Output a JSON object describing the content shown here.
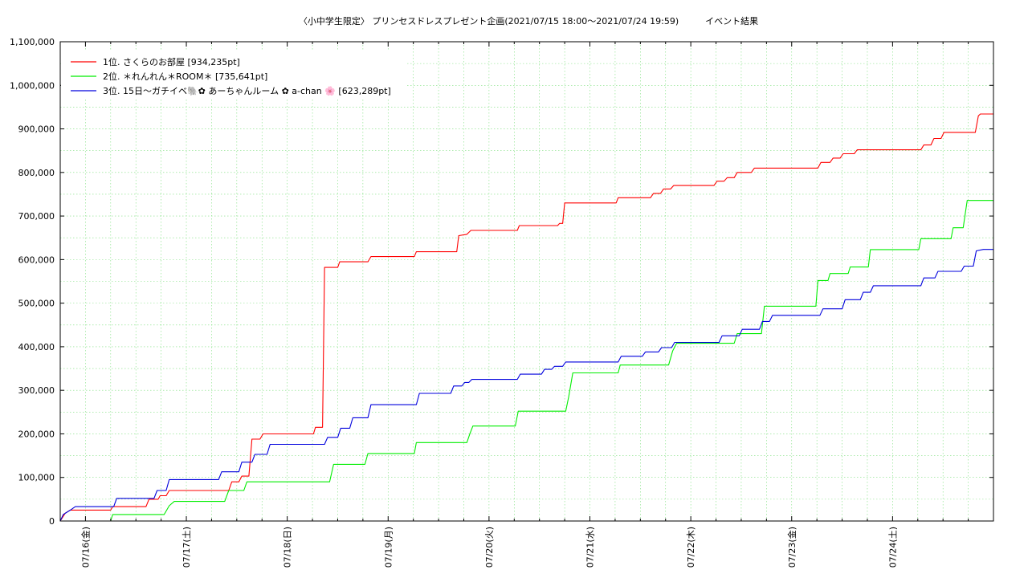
{
  "chart_data": {
    "type": "line",
    "title": "〈小中学生限定〉 プリンセスドレスプレゼント企画(2021/07/15 18:00〜2021/07/24 19:59)　　　イベント結果",
    "xlabel": "",
    "ylabel": "",
    "x_unit": "days since 2021/07/15 18:00",
    "xlim": [
      -0.25,
      9.0
    ],
    "ylim": [
      0,
      1100000
    ],
    "y_ticks": [
      0,
      100000,
      200000,
      300000,
      400000,
      500000,
      600000,
      700000,
      800000,
      900000,
      1000000,
      1100000
    ],
    "y_tick_labels": [
      "0",
      "100,000",
      "200,000",
      "300,000",
      "400,000",
      "500,000",
      "600,000",
      "700,000",
      "800,000",
      "900,000",
      "1,000,000",
      "1,100,000"
    ],
    "x_ticks": [
      0,
      1,
      2,
      3,
      4,
      5,
      6,
      7,
      8
    ],
    "x_tick_labels": [
      "07/16(金)",
      "07/17(土)",
      "07/18(日)",
      "07/19(月)",
      "07/20(火)",
      "07/21(水)",
      "07/22(木)",
      "07/23(金)",
      "07/24(土)"
    ],
    "grid": true,
    "legend_position": "top-left",
    "series": [
      {
        "name": "1位. さくらのお部屋 [934,235pt]",
        "color": "#ff0000",
        "points": [
          [
            -0.25,
            0
          ],
          [
            -0.2,
            18000
          ],
          [
            -0.15,
            25000
          ],
          [
            0.25,
            25000
          ],
          [
            0.27,
            33000
          ],
          [
            0.6,
            33000
          ],
          [
            0.63,
            50000
          ],
          [
            0.72,
            50000
          ],
          [
            0.74,
            58000
          ],
          [
            0.8,
            58000
          ],
          [
            0.83,
            70000
          ],
          [
            1.42,
            70000
          ],
          [
            1.45,
            90000
          ],
          [
            1.52,
            90000
          ],
          [
            1.55,
            103000
          ],
          [
            1.62,
            103000
          ],
          [
            1.65,
            188000
          ],
          [
            1.73,
            188000
          ],
          [
            1.76,
            200000
          ],
          [
            2.26,
            200000
          ],
          [
            2.28,
            215000
          ],
          [
            2.35,
            215000
          ],
          [
            2.37,
            582000
          ],
          [
            2.5,
            582000
          ],
          [
            2.52,
            595000
          ],
          [
            2.8,
            595000
          ],
          [
            2.83,
            607000
          ],
          [
            3.26,
            607000
          ],
          [
            3.28,
            618000
          ],
          [
            3.68,
            618000
          ],
          [
            3.7,
            655000
          ],
          [
            3.78,
            658000
          ],
          [
            3.82,
            667000
          ],
          [
            4.28,
            667000
          ],
          [
            4.3,
            678000
          ],
          [
            4.68,
            678000
          ],
          [
            4.7,
            683000
          ],
          [
            4.73,
            683000
          ],
          [
            4.75,
            730000
          ],
          [
            5.26,
            730000
          ],
          [
            5.28,
            742000
          ],
          [
            5.6,
            742000
          ],
          [
            5.63,
            752000
          ],
          [
            5.7,
            752000
          ],
          [
            5.73,
            762000
          ],
          [
            5.8,
            762000
          ],
          [
            5.83,
            770000
          ],
          [
            6.23,
            770000
          ],
          [
            6.26,
            780000
          ],
          [
            6.33,
            780000
          ],
          [
            6.36,
            788000
          ],
          [
            6.43,
            788000
          ],
          [
            6.46,
            800000
          ],
          [
            6.6,
            800000
          ],
          [
            6.63,
            810000
          ],
          [
            7.26,
            810000
          ],
          [
            7.29,
            823000
          ],
          [
            7.38,
            823000
          ],
          [
            7.41,
            833000
          ],
          [
            7.48,
            833000
          ],
          [
            7.51,
            843000
          ],
          [
            7.62,
            843000
          ],
          [
            7.65,
            852000
          ],
          [
            8.28,
            852000
          ],
          [
            8.31,
            863000
          ],
          [
            8.38,
            863000
          ],
          [
            8.41,
            878000
          ],
          [
            8.48,
            878000
          ],
          [
            8.51,
            892000
          ],
          [
            8.82,
            892000
          ],
          [
            8.85,
            930000
          ],
          [
            8.87,
            934235
          ],
          [
            9.0,
            934235
          ]
        ]
      },
      {
        "name": "2位. ＊れんれん＊ROOM＊ [735,641pt]",
        "color": "#00ee00",
        "points": [
          [
            -0.25,
            0
          ],
          [
            0.25,
            0
          ],
          [
            0.27,
            15000
          ],
          [
            0.78,
            15000
          ],
          [
            0.83,
            35000
          ],
          [
            0.88,
            45000
          ],
          [
            1.38,
            45000
          ],
          [
            1.42,
            70000
          ],
          [
            1.57,
            70000
          ],
          [
            1.6,
            90000
          ],
          [
            2.42,
            90000
          ],
          [
            2.44,
            110000
          ],
          [
            2.46,
            130000
          ],
          [
            2.77,
            130000
          ],
          [
            2.8,
            155000
          ],
          [
            3.26,
            155000
          ],
          [
            3.28,
            180000
          ],
          [
            3.78,
            180000
          ],
          [
            3.81,
            200000
          ],
          [
            3.84,
            218000
          ],
          [
            4.26,
            218000
          ],
          [
            4.29,
            252000
          ],
          [
            4.76,
            252000
          ],
          [
            4.79,
            285000
          ],
          [
            4.83,
            340000
          ],
          [
            5.28,
            340000
          ],
          [
            5.3,
            358000
          ],
          [
            5.78,
            358000
          ],
          [
            5.82,
            390000
          ],
          [
            5.86,
            408000
          ],
          [
            6.43,
            408000
          ],
          [
            6.46,
            430000
          ],
          [
            6.7,
            430000
          ],
          [
            6.73,
            493000
          ],
          [
            7.24,
            493000
          ],
          [
            7.26,
            552000
          ],
          [
            7.36,
            552000
          ],
          [
            7.38,
            568000
          ],
          [
            7.56,
            568000
          ],
          [
            7.58,
            583000
          ],
          [
            7.76,
            583000
          ],
          [
            7.78,
            623000
          ],
          [
            8.26,
            623000
          ],
          [
            8.28,
            648000
          ],
          [
            8.58,
            648000
          ],
          [
            8.6,
            673000
          ],
          [
            8.7,
            673000
          ],
          [
            8.74,
            735641
          ],
          [
            9.0,
            735641
          ]
        ]
      },
      {
        "name": "3位. 15日〜ガチイベ🐘✿ あーちゃんルーム ✿ a-chan 🌸 [623,289pt]",
        "color": "#0000dd",
        "points": [
          [
            -0.25,
            0
          ],
          [
            -0.22,
            15000
          ],
          [
            -0.15,
            25000
          ],
          [
            -0.1,
            33000
          ],
          [
            0.28,
            33000
          ],
          [
            0.31,
            52000
          ],
          [
            0.68,
            52000
          ],
          [
            0.71,
            70000
          ],
          [
            0.8,
            70000
          ],
          [
            0.83,
            95000
          ],
          [
            1.32,
            95000
          ],
          [
            1.35,
            113000
          ],
          [
            1.52,
            113000
          ],
          [
            1.55,
            135000
          ],
          [
            1.65,
            135000
          ],
          [
            1.68,
            153000
          ],
          [
            1.8,
            153000
          ],
          [
            1.83,
            176000
          ],
          [
            2.37,
            176000
          ],
          [
            2.4,
            192000
          ],
          [
            2.5,
            192000
          ],
          [
            2.53,
            213000
          ],
          [
            2.62,
            213000
          ],
          [
            2.65,
            237000
          ],
          [
            2.8,
            237000
          ],
          [
            2.83,
            267000
          ],
          [
            3.28,
            267000
          ],
          [
            3.31,
            293000
          ],
          [
            3.62,
            293000
          ],
          [
            3.65,
            310000
          ],
          [
            3.73,
            310000
          ],
          [
            3.76,
            318000
          ],
          [
            3.8,
            318000
          ],
          [
            3.83,
            325000
          ],
          [
            4.28,
            325000
          ],
          [
            4.31,
            337000
          ],
          [
            4.52,
            337000
          ],
          [
            4.55,
            348000
          ],
          [
            4.62,
            348000
          ],
          [
            4.65,
            355000
          ],
          [
            4.73,
            355000
          ],
          [
            4.76,
            365000
          ],
          [
            5.28,
            365000
          ],
          [
            5.31,
            378000
          ],
          [
            5.52,
            378000
          ],
          [
            5.55,
            388000
          ],
          [
            5.68,
            388000
          ],
          [
            5.71,
            398000
          ],
          [
            5.81,
            398000
          ],
          [
            5.84,
            410000
          ],
          [
            6.28,
            410000
          ],
          [
            6.31,
            425000
          ],
          [
            6.48,
            425000
          ],
          [
            6.51,
            440000
          ],
          [
            6.68,
            440000
          ],
          [
            6.71,
            458000
          ],
          [
            6.78,
            458000
          ],
          [
            6.81,
            472000
          ],
          [
            7.28,
            472000
          ],
          [
            7.31,
            487000
          ],
          [
            7.5,
            487000
          ],
          [
            7.53,
            508000
          ],
          [
            7.68,
            508000
          ],
          [
            7.71,
            525000
          ],
          [
            7.78,
            525000
          ],
          [
            7.81,
            540000
          ],
          [
            8.28,
            540000
          ],
          [
            8.31,
            558000
          ],
          [
            8.42,
            558000
          ],
          [
            8.45,
            573000
          ],
          [
            8.68,
            573000
          ],
          [
            8.71,
            585000
          ],
          [
            8.8,
            585000
          ],
          [
            8.83,
            620000
          ],
          [
            8.9,
            623289
          ],
          [
            9.0,
            623289
          ]
        ]
      }
    ]
  }
}
